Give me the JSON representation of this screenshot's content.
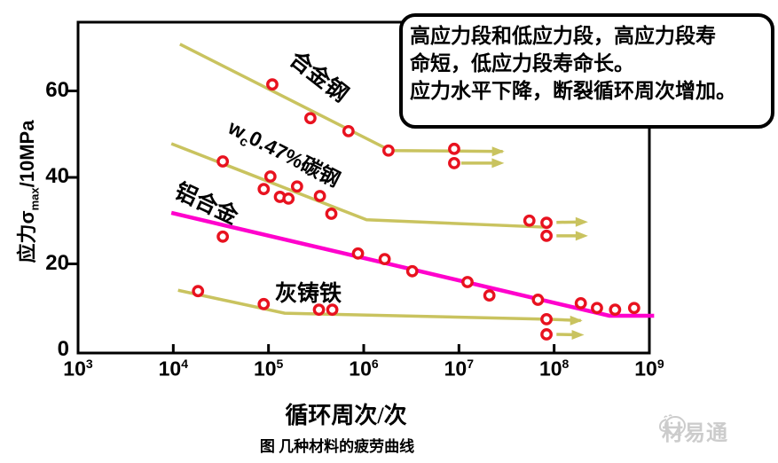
{
  "callout": {
    "lines": [
      "高应力段和低应力段，高应力段寿",
      "命短，低应力段寿命长。",
      "应力水平下降，断裂循环周次增加。"
    ]
  },
  "caption": "图  几种材料的疲劳曲线",
  "watermark": {
    "text": "材易通",
    "icon": "fish-logo-icon",
    "color": "#cccccc"
  },
  "chart_data": {
    "type": "line",
    "title": "几种材料的疲劳曲线",
    "xlabel": "循环周次/次",
    "ylabel": "应力σmax/10MPa",
    "ylabel_parts": {
      "pre": "应力σ",
      "sub": "max",
      "rest": "/10MPa"
    },
    "x_scale": "log10",
    "x_tick_exponents": [
      3,
      4,
      5,
      6,
      7,
      8,
      9
    ],
    "y_ticks": [
      0,
      20,
      40,
      60
    ],
    "xlim_log10": [
      3,
      9
    ],
    "ylim": [
      0,
      76
    ],
    "grid": false,
    "marker_color": "#e8121f",
    "series": [
      {
        "name": "alloy-steel",
        "label": "合金钢",
        "color": "#c9c35f",
        "line": [
          [
            4.07,
            70.8
          ],
          [
            6.28,
            46.2
          ],
          [
            7.46,
            46.0
          ]
        ],
        "line_end_arrow": true,
        "markers": [
          [
            5.04,
            61.5
          ],
          [
            5.44,
            53.7
          ],
          [
            5.84,
            50.7
          ],
          [
            6.26,
            46.2
          ],
          [
            6.95,
            46.6
          ],
          [
            6.95,
            43.3
          ]
        ],
        "runout_arrows": [
          {
            "from": [
              6.95,
              43.3
            ],
            "to": [
              7.42,
              43.3
            ]
          }
        ]
      },
      {
        "name": "carbon-steel",
        "label": "wc0.47%碳钢",
        "label_parts": {
          "pre": "w",
          "sub": "c",
          "rest": "0.47%碳钢"
        },
        "color": "#c9c35f",
        "line": [
          [
            3.98,
            47.8
          ],
          [
            6.03,
            30.2
          ],
          [
            7.9,
            28.5
          ]
        ],
        "line_end_arrow": false,
        "markers": [
          [
            4.52,
            43.7
          ],
          [
            5.02,
            40.2
          ],
          [
            4.95,
            37.3
          ],
          [
            5.3,
            37.9
          ],
          [
            5.12,
            35.5
          ],
          [
            5.21,
            35.1
          ],
          [
            5.54,
            35.7
          ],
          [
            5.66,
            31.6
          ],
          [
            7.74,
            30.0
          ],
          [
            7.92,
            29.5
          ],
          [
            7.92,
            26.5
          ]
        ],
        "runout_arrows": [
          {
            "from": [
              7.95,
              29.6
            ],
            "to": [
              8.3,
              29.7
            ]
          },
          {
            "from": [
              7.95,
              26.5
            ],
            "to": [
              8.3,
              26.5
            ]
          }
        ]
      },
      {
        "name": "aluminum-alloy",
        "label": "铝合金",
        "color": "#ff00cc",
        "line": [
          [
            3.98,
            31.8
          ],
          [
            8.58,
            8.0
          ],
          [
            9.05,
            8.0
          ]
        ],
        "line_end_arrow": false,
        "markers": [
          [
            4.52,
            26.3
          ],
          [
            5.94,
            22.4
          ],
          [
            6.22,
            21.1
          ],
          [
            6.51,
            18.3
          ],
          [
            7.09,
            15.8
          ],
          [
            7.32,
            12.7
          ],
          [
            7.83,
            11.7
          ],
          [
            8.28,
            10.9
          ],
          [
            8.45,
            9.8
          ],
          [
            8.64,
            9.4
          ],
          [
            8.84,
            9.8
          ]
        ],
        "runout_arrows": []
      },
      {
        "name": "gray-cast-iron",
        "label": "灰铸铁",
        "color": "#c9c35f",
        "line": [
          [
            4.05,
            13.9
          ],
          [
            5.17,
            8.6
          ],
          [
            7.92,
            7.2
          ],
          [
            8.28,
            6.9
          ]
        ],
        "line_end_arrow": true,
        "markers": [
          [
            4.26,
            13.7
          ],
          [
            4.95,
            10.7
          ],
          [
            5.53,
            9.4
          ],
          [
            5.67,
            9.4
          ],
          [
            7.92,
            7.2
          ],
          [
            7.92,
            3.7
          ]
        ],
        "runout_arrows": [
          {
            "from": [
              7.95,
              3.7
            ],
            "to": [
              8.26,
              3.6
            ]
          }
        ]
      }
    ]
  }
}
